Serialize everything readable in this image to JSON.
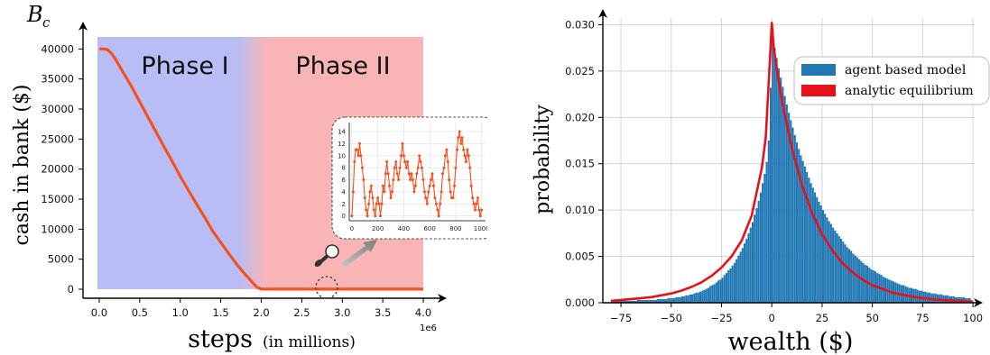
{
  "chart_data": [
    {
      "type": "line",
      "ylabel_symbol": "B",
      "ylabel_symbol_sub": "c",
      "ylabel": "cash in bank ($)",
      "xlabel": "steps",
      "xlabel_suffix": "(in millions)",
      "x_offset_label": "1e6",
      "xlim": [
        -0.2,
        4.2
      ],
      "ylim": [
        -1500,
        42000
      ],
      "xticks": [
        "0.0",
        "0.5",
        "1.0",
        "1.5",
        "2.0",
        "2.5",
        "3.0",
        "3.5",
        "4.0"
      ],
      "yticks": [
        "0",
        "5000",
        "10000",
        "15000",
        "20000",
        "25000",
        "30000",
        "35000",
        "40000"
      ],
      "phases": [
        {
          "label": "Phase I",
          "x_start": 0.0,
          "x_end": 2.0,
          "color": "#b8bdf5"
        },
        {
          "label": "Phase II",
          "x_start": 2.0,
          "x_end": 4.0,
          "color": "#f9b5b5"
        }
      ],
      "series": [
        {
          "color": "#f5501e",
          "x": [
            0.0,
            0.05,
            0.1,
            0.15,
            0.2,
            0.3,
            0.4,
            0.5,
            0.6,
            0.7,
            0.8,
            0.9,
            1.0,
            1.1,
            1.2,
            1.3,
            1.4,
            1.5,
            1.6,
            1.7,
            1.8,
            1.9,
            1.95,
            2.0,
            2.1,
            2.5,
            3.0,
            3.5,
            4.0
          ],
          "y": [
            40000,
            40000,
            39900,
            39300,
            38300,
            36000,
            33700,
            31200,
            28700,
            26200,
            23700,
            21300,
            18800,
            16500,
            14200,
            12000,
            9700,
            7800,
            5900,
            4100,
            2500,
            1000,
            300,
            20,
            10,
            10,
            10,
            10,
            10
          ]
        }
      ],
      "inset": {
        "type": "line",
        "xticks": [
          "0",
          "200",
          "400",
          "600",
          "800",
          "1000"
        ],
        "yticks": [
          "0",
          "2",
          "4",
          "6",
          "8",
          "10",
          "12",
          "14"
        ],
        "xlim": [
          -20,
          1030
        ],
        "ylim": [
          -0.8,
          15.5
        ],
        "color": "#f5501e",
        "x": [
          0,
          10,
          20,
          30,
          40,
          50,
          60,
          70,
          80,
          90,
          100,
          110,
          120,
          130,
          140,
          150,
          160,
          170,
          180,
          190,
          200,
          210,
          220,
          230,
          240,
          250,
          260,
          270,
          280,
          290,
          300,
          310,
          320,
          330,
          340,
          350,
          360,
          370,
          380,
          390,
          400,
          410,
          420,
          430,
          440,
          450,
          460,
          470,
          480,
          490,
          500,
          510,
          520,
          530,
          540,
          550,
          560,
          570,
          580,
          590,
          600,
          610,
          620,
          630,
          640,
          650,
          660,
          670,
          680,
          690,
          700,
          710,
          720,
          730,
          740,
          750,
          760,
          770,
          780,
          790,
          800,
          810,
          820,
          830,
          840,
          850,
          860,
          870,
          880,
          890,
          900,
          910,
          920,
          930,
          940,
          950,
          960,
          970,
          980,
          990,
          1000
        ],
        "y": [
          0,
          4,
          9,
          11,
          11,
          10,
          12,
          10,
          8,
          6,
          3,
          1,
          0,
          2,
          4,
          5,
          3,
          1,
          0,
          2,
          3,
          2,
          0,
          2,
          5,
          4,
          7,
          9,
          7,
          5,
          3,
          4,
          6,
          8,
          9,
          7,
          6,
          8,
          10,
          12,
          10,
          9,
          8,
          9,
          7,
          6,
          7,
          6,
          4,
          5,
          7,
          8,
          10,
          9,
          8,
          6,
          4,
          3,
          2,
          4,
          5,
          6,
          7,
          5,
          3,
          2,
          1,
          0,
          2,
          4,
          7,
          8,
          10,
          11,
          9,
          6,
          4,
          3,
          3,
          5,
          8,
          11,
          13,
          14,
          12,
          13,
          11,
          10,
          9,
          11,
          10,
          8,
          5,
          3,
          2,
          1,
          2,
          3,
          1,
          0,
          1
        ]
      }
    },
    {
      "type": "bar",
      "xlabel": "wealth ($)",
      "ylabel": "probability",
      "xlim": [
        -84,
        104
      ],
      "ylim": [
        0,
        0.0315
      ],
      "xticks": [
        -75,
        -50,
        -25,
        0,
        25,
        50,
        75,
        100
      ],
      "xtick_labels": [
        "−75",
        "−50",
        "−25",
        "0",
        "25",
        "50",
        "75",
        "100"
      ],
      "yticks": [
        0.0,
        0.005,
        0.01,
        0.015,
        0.02,
        0.025,
        0.03
      ],
      "ytick_labels": [
        "0.000",
        "0.005",
        "0.010",
        "0.015",
        "0.020",
        "0.025",
        "0.030"
      ],
      "grid": true,
      "legend_position": "top-right",
      "series": [
        {
          "name": "agent based model",
          "kind": "histogram",
          "color": "#1f77b4",
          "bin_start": -80,
          "bin_width": 1,
          "values": [
            0.0002,
            0.0002,
            0.0002,
            0.0002,
            0.0002,
            0.0002,
            0.0002,
            0.0002,
            0.0002,
            0.0002,
            0.0002,
            0.0002,
            0.0002,
            0.0003,
            0.0003,
            0.0003,
            0.0003,
            0.0003,
            0.0003,
            0.0003,
            0.0003,
            0.0003,
            0.0003,
            0.0004,
            0.0004,
            0.0004,
            0.0004,
            0.0004,
            0.0005,
            0.0005,
            0.0005,
            0.0005,
            0.0006,
            0.0006,
            0.0006,
            0.0007,
            0.0007,
            0.0008,
            0.0008,
            0.0009,
            0.0009,
            0.001,
            0.0011,
            0.0011,
            0.0012,
            0.0013,
            0.0014,
            0.0015,
            0.0016,
            0.0018,
            0.0019,
            0.002,
            0.0022,
            0.0024,
            0.0025,
            0.0027,
            0.003,
            0.0032,
            0.0035,
            0.0037,
            0.004,
            0.0043,
            0.0047,
            0.0051,
            0.0055,
            0.0059,
            0.0064,
            0.0069,
            0.0075,
            0.0081,
            0.0087,
            0.0095,
            0.0102,
            0.011,
            0.0119,
            0.0129,
            0.0139,
            0.0152,
            0.0175,
            0.0232,
            0.0295,
            0.0275,
            0.0264,
            0.0253,
            0.0243,
            0.0233,
            0.0223,
            0.0214,
            0.0205,
            0.0197,
            0.0189,
            0.0181,
            0.0173,
            0.0166,
            0.0159,
            0.0153,
            0.0147,
            0.0141,
            0.0135,
            0.0129,
            0.0124,
            0.0119,
            0.0114,
            0.0109,
            0.0105,
            0.01,
            0.0096,
            0.0092,
            0.0088,
            0.0085,
            0.0081,
            0.0078,
            0.0075,
            0.0072,
            0.0069,
            0.0066,
            0.0063,
            0.006,
            0.0058,
            0.0056,
            0.0053,
            0.0051,
            0.0049,
            0.0047,
            0.0045,
            0.0043,
            0.0041,
            0.004,
            0.0038,
            0.0036,
            0.0035,
            0.0034,
            0.0032,
            0.0031,
            0.003,
            0.0028,
            0.0027,
            0.0026,
            0.0025,
            0.0024,
            0.0023,
            0.0022,
            0.0021,
            0.002,
            0.0019,
            0.0019,
            0.0018,
            0.0017,
            0.0016,
            0.0016,
            0.0015,
            0.0015,
            0.0014,
            0.0013,
            0.0013,
            0.0012,
            0.0012,
            0.0011,
            0.0011,
            0.001,
            0.001,
            0.001,
            0.0009,
            0.0009,
            0.0009,
            0.0008,
            0.0008,
            0.0008,
            0.0007,
            0.0007,
            0.0007,
            0.0006,
            0.0006,
            0.0006,
            0.0006,
            0.0006,
            0.0005,
            0.0005,
            0.0005
          ]
        },
        {
          "name": "analytic equilibrium",
          "kind": "line",
          "color": "#e8101b",
          "x": [
            -80,
            -75,
            -70,
            -65,
            -60,
            -55,
            -50,
            -45,
            -40,
            -35,
            -30,
            -25,
            -20,
            -15,
            -10,
            -5,
            -3,
            -1,
            0,
            1,
            3,
            5,
            10,
            15,
            20,
            25,
            30,
            35,
            40,
            45,
            50,
            55,
            60,
            65,
            70,
            75,
            80,
            85,
            90,
            95,
            100
          ],
          "y": [
            0.0002,
            0.0003,
            0.0004,
            0.0005,
            0.0006,
            0.0008,
            0.001,
            0.0013,
            0.0017,
            0.0022,
            0.0029,
            0.0038,
            0.005,
            0.0067,
            0.0094,
            0.0145,
            0.0178,
            0.026,
            0.0302,
            0.0275,
            0.0245,
            0.0218,
            0.0167,
            0.0127,
            0.0097,
            0.0074,
            0.0057,
            0.0043,
            0.0033,
            0.0025,
            0.0019,
            0.0015,
            0.0011,
            0.00086,
            0.00065,
            0.0005,
            0.00038,
            0.00029,
            0.00022,
            0.00017,
            0.00013
          ]
        }
      ]
    }
  ]
}
